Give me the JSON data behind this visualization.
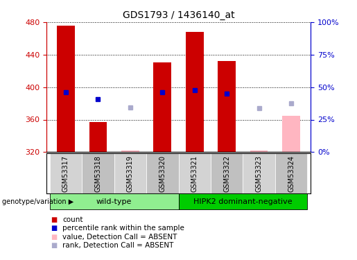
{
  "title": "GDS1793 / 1436140_at",
  "samples": [
    "GSM53317",
    "GSM53318",
    "GSM53319",
    "GSM53320",
    "GSM53321",
    "GSM53322",
    "GSM53323",
    "GSM53324"
  ],
  "ylim": [
    320,
    480
  ],
  "yticks": [
    320,
    360,
    400,
    440,
    480
  ],
  "y2lim": [
    0,
    100
  ],
  "y2ticks": [
    0,
    25,
    50,
    75,
    100
  ],
  "y2ticklabels": [
    "0%",
    "25%",
    "50%",
    "75%",
    "100%"
  ],
  "bar_bottom": 320,
  "bar_tops_red": [
    476,
    357,
    null,
    430,
    468,
    432,
    null,
    null
  ],
  "bar_tops_pink": [
    null,
    null,
    322,
    null,
    null,
    null,
    322,
    365
  ],
  "dots_blue": [
    394,
    385,
    null,
    394,
    396,
    392,
    null,
    null
  ],
  "dots_lightblue": [
    null,
    null,
    375,
    null,
    null,
    null,
    374,
    380
  ],
  "groups": [
    {
      "label": "wild-type",
      "start": 0,
      "end": 3,
      "color": "#90EE90"
    },
    {
      "label": "HIPK2 dominant-negative",
      "start": 4,
      "end": 7,
      "color": "#00CC00"
    }
  ],
  "group_label_prefix": "genotype/variation",
  "legend_items": [
    {
      "color": "#CC0000",
      "label": "count"
    },
    {
      "color": "#0000CC",
      "label": "percentile rank within the sample"
    },
    {
      "color": "#FFB6C1",
      "label": "value, Detection Call = ABSENT"
    },
    {
      "color": "#AAAACC",
      "label": "rank, Detection Call = ABSENT"
    }
  ],
  "bar_color_red": "#CC0000",
  "bar_color_pink": "#FFB6C1",
  "dot_color_blue": "#0000CC",
  "dot_color_lightblue": "#AAAACC",
  "left_axis_color": "#CC0000",
  "right_axis_color": "#0000CC",
  "bar_width": 0.55,
  "col_colors": [
    "#D3D3D3",
    "#C0C0C0"
  ]
}
